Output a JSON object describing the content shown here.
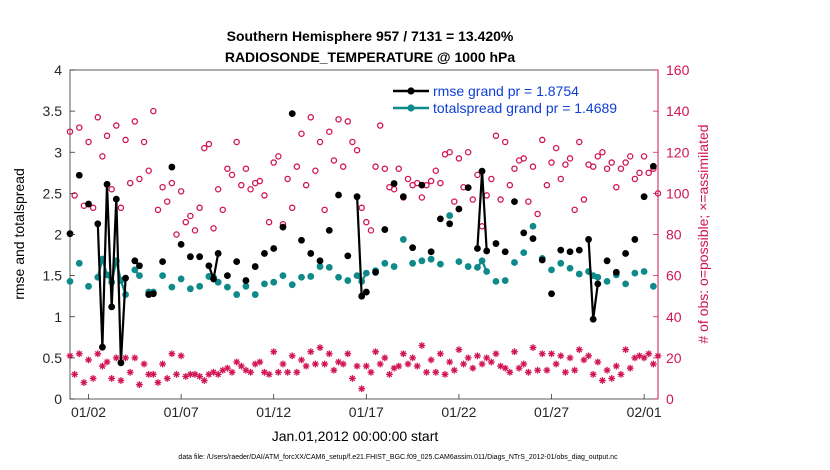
{
  "title_line1": "Southern Hemisphere 957 / 7131 = 13.420%",
  "title_line2": "RADIOSONDE_TEMPERATURE @ 1000 hPa",
  "footnote": "data file: /Users/raeder/DAI/ATM_forcXX/CAM6_setup/f.e21.FHIST_BGC.f09_025.CAM6assim.011/Diags_NTrS_2012-01/obs_diag_output.nc",
  "colors": {
    "rmse": "#000000",
    "spread": "#0f8a8a",
    "obs": "#d11456",
    "legend_text": "#0d3fd6"
  },
  "chart_data": {
    "type": "line",
    "title": "Southern Hemisphere 957 / 7131 = 13.420%\nRADIOSONDE_TEMPERATURE @ 1000 hPa",
    "xlabel": "Jan.01,2012 00:00:00 start",
    "ylabel": "rmse and totalspread",
    "y2label": "# of obs: o=possible; ×=assimilated",
    "xlim": [
      0,
      31.75
    ],
    "ylim": [
      0,
      4
    ],
    "y2lim": [
      0,
      160
    ],
    "xticks": [
      {
        "x": 1,
        "label": "01/02"
      },
      {
        "x": 6,
        "label": "01/07"
      },
      {
        "x": 11,
        "label": "01/12"
      },
      {
        "x": 16,
        "label": "01/17"
      },
      {
        "x": 21,
        "label": "01/22"
      },
      {
        "x": 26,
        "label": "01/27"
      },
      {
        "x": 31,
        "label": "02/01"
      }
    ],
    "yticks": [
      0,
      0.5,
      1,
      1.5,
      2,
      2.5,
      3,
      3.5,
      4
    ],
    "y2ticks": [
      0,
      20,
      40,
      60,
      80,
      100,
      120,
      140,
      160
    ],
    "legend": [
      {
        "name": "rmse grand pr = 1.8754",
        "series": "rmse"
      },
      {
        "name": "totalspread grand pr = 1.4689",
        "series": "spread"
      }
    ],
    "legend_position": "top-right",
    "x": [
      0,
      0.25,
      0.5,
      0.75,
      1,
      1.25,
      1.5,
      1.75,
      2,
      2.25,
      2.5,
      2.75,
      3,
      3.25,
      3.5,
      3.75,
      4,
      4.25,
      4.5,
      4.75,
      5,
      5.25,
      5.5,
      5.75,
      6,
      6.25,
      6.5,
      6.75,
      7,
      7.25,
      7.5,
      7.75,
      8,
      8.25,
      8.5,
      8.75,
      9,
      9.25,
      9.5,
      9.75,
      10,
      10.25,
      10.5,
      10.75,
      11,
      11.25,
      11.5,
      11.75,
      12,
      12.25,
      12.5,
      12.75,
      13,
      13.25,
      13.5,
      13.75,
      14,
      14.25,
      14.5,
      14.75,
      15,
      15.25,
      15.5,
      15.75,
      16,
      16.25,
      16.5,
      16.75,
      17,
      17.25,
      17.5,
      17.75,
      18,
      18.25,
      18.5,
      18.75,
      19,
      19.25,
      19.5,
      19.75,
      20,
      20.25,
      20.5,
      20.75,
      21,
      21.25,
      21.5,
      21.75,
      22,
      22.25,
      22.5,
      22.75,
      23,
      23.25,
      23.5,
      23.75,
      24,
      24.25,
      24.5,
      24.75,
      25,
      25.25,
      25.5,
      25.75,
      26,
      26.25,
      26.5,
      26.75,
      27,
      27.25,
      27.5,
      27.75,
      28,
      28.25,
      28.5,
      28.75,
      29,
      29.25,
      29.5,
      29.75,
      30,
      30.25,
      30.5,
      30.75,
      31,
      31.25,
      31.5,
      31.75
    ],
    "series": [
      {
        "name": "rmse",
        "style": "line-dots",
        "values": [
          2.01,
          null,
          2.72,
          null,
          2.37,
          null,
          2.13,
          0.63,
          2.61,
          1.12,
          2.43,
          0.44,
          1.47,
          null,
          1.68,
          1.62,
          null,
          1.27,
          1.28,
          null,
          1.67,
          null,
          2.82,
          null,
          1.88,
          null,
          1.73,
          null,
          1.73,
          null,
          1.62,
          1.46,
          1.77,
          null,
          1.5,
          null,
          1.67,
          null,
          1.44,
          null,
          1.61,
          null,
          1.77,
          null,
          1.83,
          null,
          2.09,
          null,
          3.47,
          null,
          1.93,
          null,
          1.77,
          null,
          1.68,
          null,
          2.05,
          null,
          2.48,
          null,
          1.74,
          null,
          2.46,
          1.25,
          1.3,
          null,
          1.54,
          null,
          2.06,
          null,
          2.62,
          null,
          2.46,
          null,
          1.84,
          null,
          2.6,
          null,
          1.79,
          null,
          2.19,
          null,
          2.13,
          null,
          2.31,
          null,
          2.57,
          null,
          1.83,
          2.77,
          1.8,
          null,
          1.89,
          null,
          1.79,
          null,
          2.4,
          null,
          2.02,
          null,
          1.95,
          null,
          1.69,
          null,
          1.28,
          null,
          1.81,
          null,
          1.79,
          null,
          1.81,
          null,
          1.94,
          0.97,
          1.4,
          null,
          1.68,
          null,
          1.54,
          null,
          1.77,
          null,
          1.94,
          null,
          2.46,
          null,
          2.83,
          null
        ]
      },
      {
        "name": "totalspread",
        "style": "line-dots",
        "values": [
          1.43,
          null,
          1.65,
          null,
          1.37,
          null,
          1.48,
          1.7,
          1.51,
          1.42,
          1.68,
          1.44,
          1.27,
          null,
          1.57,
          1.5,
          null,
          1.3,
          1.3,
          null,
          1.5,
          null,
          1.36,
          null,
          1.46,
          null,
          1.34,
          null,
          1.37,
          null,
          1.49,
          1.48,
          1.42,
          null,
          1.36,
          null,
          1.27,
          null,
          1.37,
          null,
          1.27,
          null,
          1.4,
          null,
          1.42,
          null,
          1.5,
          null,
          1.39,
          null,
          1.48,
          null,
          1.49,
          null,
          1.61,
          null,
          1.6,
          null,
          1.48,
          null,
          1.44,
          null,
          1.5,
          1.43,
          1.53,
          null,
          1.56,
          null,
          1.65,
          null,
          1.61,
          null,
          1.94,
          null,
          1.65,
          null,
          1.68,
          null,
          1.7,
          null,
          1.64,
          null,
          2.23,
          null,
          1.67,
          null,
          1.61,
          null,
          1.6,
          1.68,
          1.55,
          null,
          1.43,
          null,
          1.44,
          null,
          1.66,
          null,
          1.78,
          null,
          2.1,
          null,
          1.71,
          null,
          1.57,
          null,
          1.65,
          null,
          1.59,
          null,
          1.52,
          null,
          1.55,
          1.5,
          1.48,
          null,
          1.43,
          null,
          1.51,
          null,
          1.4,
          null,
          1.53,
          null,
          1.55,
          null,
          1.37,
          null
        ]
      },
      {
        "name": "possible",
        "style": "circles",
        "values": [
          130,
          99,
          132,
          94,
          125,
          93,
          137,
          118,
          128,
          102,
          133,
          93,
          126,
          105,
          135,
          107,
          125,
          111,
          140,
          92,
          103,
          96,
          105,
          80,
          101,
          86,
          89,
          82,
          93,
          122,
          124,
          83,
          102,
          92,
          112,
          109,
          125,
          104,
          112,
          102,
          105,
          106,
          99,
          86,
          115,
          118,
          85,
          107,
          93,
          113,
          129,
          104,
          137,
          111,
          125,
          92,
          130,
          116,
          136,
          113,
          135,
          125,
          121,
          93,
          86,
          82,
          113,
          133,
          112,
          103,
          102,
          112,
          98,
          107,
          104,
          105,
          98,
          104,
          106,
          111,
          105,
          119,
          120,
          96,
          117,
          103,
          120,
          97,
          109,
          84,
          99,
          107,
          128,
          97,
          125,
          104,
          112,
          116,
          117,
          96,
          113,
          90,
          126,
          104,
          115,
          122,
          107,
          114,
          117,
          92,
          125,
          97,
          114,
          113,
          118,
          120,
          112,
          115,
          103,
          112,
          115,
          118,
          107,
          110,
          118,
          110,
          112,
          100
        ]
      },
      {
        "name": "assimilated",
        "style": "asterisks",
        "values": [
          21,
          12,
          22,
          8,
          19,
          10,
          22,
          16,
          18,
          10,
          20,
          9,
          20,
          13,
          20,
          7,
          17,
          12,
          12,
          8,
          17,
          10,
          22,
          12,
          21,
          11,
          12,
          12,
          11,
          9,
          12,
          13,
          12,
          14,
          15,
          13,
          18,
          16,
          14,
          13,
          17,
          18,
          13,
          12,
          23,
          13,
          17,
          13,
          21,
          13,
          19,
          16,
          23,
          17,
          25,
          17,
          22,
          14,
          18,
          17,
          22,
          10,
          16,
          5,
          16,
          13,
          23,
          17,
          20,
          12,
          15,
          16,
          22,
          17,
          20,
          16,
          26,
          13,
          19,
          13,
          22,
          12,
          18,
          14,
          24,
          17,
          20,
          15,
          21,
          17,
          20,
          18,
          22,
          16,
          15,
          13,
          23,
          15,
          17,
          13,
          25,
          14,
          22,
          14,
          22,
          17,
          21,
          13,
          20,
          14,
          24,
          19,
          21,
          12,
          18,
          9,
          14,
          10,
          16,
          12,
          24,
          15,
          20,
          21,
          20,
          22,
          17,
          21
        ]
      }
    ]
  }
}
